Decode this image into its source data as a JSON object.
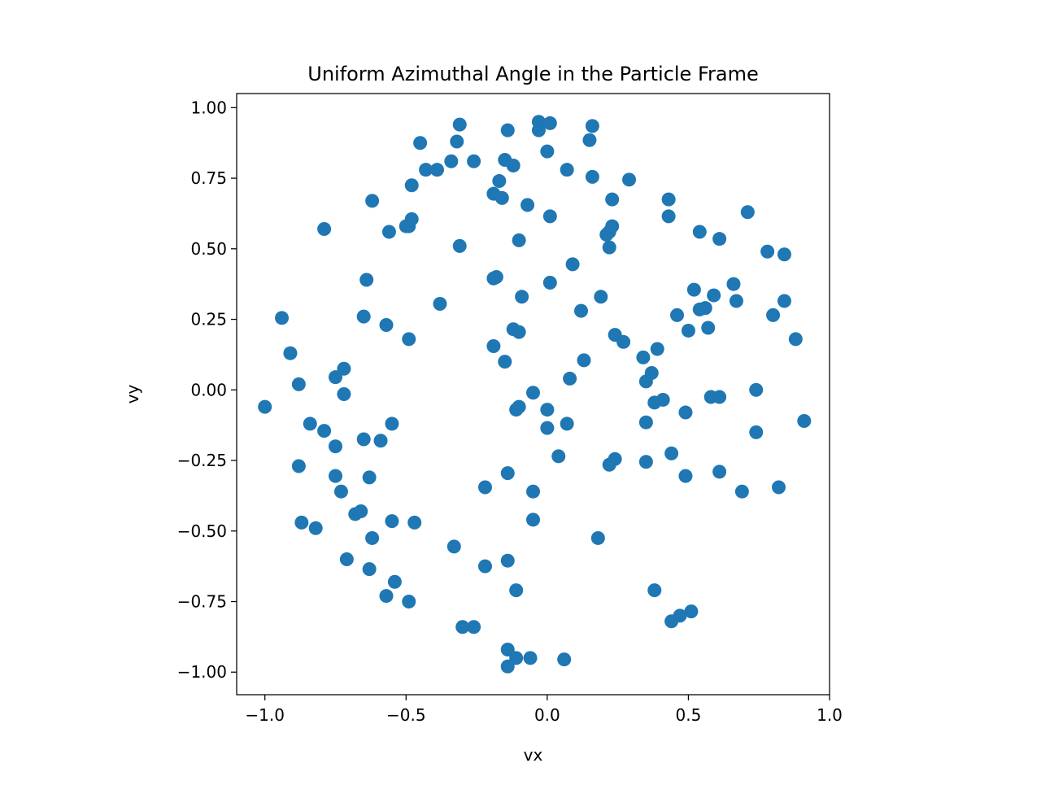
{
  "chart_data": {
    "type": "scatter",
    "title": "Uniform Azimuthal Angle in the Particle Frame",
    "xlabel": "vx",
    "ylabel": "vy",
    "xlim": [
      -1.1,
      1.0
    ],
    "ylim": [
      -1.08,
      1.05
    ],
    "xticks": [
      -1.0,
      -0.5,
      0.0,
      0.5,
      1.0
    ],
    "xtick_labels": [
      "−1.0",
      "−0.5",
      "0.0",
      "0.5",
      "1.0"
    ],
    "yticks": [
      -1.0,
      -0.75,
      -0.5,
      -0.25,
      0.0,
      0.25,
      0.5,
      0.75,
      1.0
    ],
    "ytick_labels": [
      "−1.00",
      "−0.75",
      "−0.50",
      "−0.25",
      "0.00",
      "0.25",
      "0.50",
      "0.75",
      "1.00"
    ],
    "grid": false,
    "color": "#1f77b4",
    "points": [
      [
        -0.31,
        0.94
      ],
      [
        -0.03,
        0.95
      ],
      [
        0.01,
        0.945
      ],
      [
        -0.03,
        0.92
      ],
      [
        0.16,
        0.935
      ],
      [
        -0.14,
        0.92
      ],
      [
        0.15,
        0.885
      ],
      [
        -0.45,
        0.875
      ],
      [
        -0.32,
        0.88
      ],
      [
        0.0,
        0.845
      ],
      [
        -0.34,
        0.81
      ],
      [
        -0.26,
        0.81
      ],
      [
        -0.15,
        0.815
      ],
      [
        -0.12,
        0.795
      ],
      [
        -0.43,
        0.78
      ],
      [
        -0.39,
        0.78
      ],
      [
        0.07,
        0.78
      ],
      [
        0.16,
        0.755
      ],
      [
        0.29,
        0.745
      ],
      [
        -0.17,
        0.74
      ],
      [
        -0.48,
        0.725
      ],
      [
        -0.19,
        0.695
      ],
      [
        -0.16,
        0.68
      ],
      [
        0.23,
        0.675
      ],
      [
        0.43,
        0.675
      ],
      [
        -0.62,
        0.67
      ],
      [
        -0.07,
        0.655
      ],
      [
        0.01,
        0.615
      ],
      [
        0.43,
        0.615
      ],
      [
        0.71,
        0.63
      ],
      [
        -0.48,
        0.605
      ],
      [
        -0.49,
        0.58
      ],
      [
        -0.5,
        0.58
      ],
      [
        0.23,
        0.58
      ],
      [
        -0.79,
        0.57
      ],
      [
        -0.56,
        0.56
      ],
      [
        0.21,
        0.55
      ],
      [
        0.22,
        0.56
      ],
      [
        0.54,
        0.56
      ],
      [
        0.61,
        0.535
      ],
      [
        -0.1,
        0.53
      ],
      [
        -0.31,
        0.51
      ],
      [
        0.22,
        0.505
      ],
      [
        0.78,
        0.49
      ],
      [
        0.84,
        0.48
      ],
      [
        0.09,
        0.445
      ],
      [
        -0.18,
        0.4
      ],
      [
        -0.19,
        0.395
      ],
      [
        -0.64,
        0.39
      ],
      [
        0.01,
        0.38
      ],
      [
        0.66,
        0.375
      ],
      [
        0.52,
        0.355
      ],
      [
        -0.09,
        0.33
      ],
      [
        0.19,
        0.33
      ],
      [
        0.59,
        0.335
      ],
      [
        0.67,
        0.315
      ],
      [
        0.84,
        0.315
      ],
      [
        -0.38,
        0.305
      ],
      [
        0.56,
        0.29
      ],
      [
        0.54,
        0.285
      ],
      [
        0.12,
        0.28
      ],
      [
        -0.65,
        0.26
      ],
      [
        0.46,
        0.265
      ],
      [
        0.8,
        0.265
      ],
      [
        -0.94,
        0.255
      ],
      [
        -0.57,
        0.23
      ],
      [
        -0.12,
        0.215
      ],
      [
        0.57,
        0.22
      ],
      [
        -0.1,
        0.205
      ],
      [
        0.5,
        0.21
      ],
      [
        0.24,
        0.195
      ],
      [
        0.88,
        0.18
      ],
      [
        -0.49,
        0.18
      ],
      [
        0.27,
        0.17
      ],
      [
        -0.19,
        0.155
      ],
      [
        0.39,
        0.145
      ],
      [
        -0.91,
        0.13
      ],
      [
        0.34,
        0.115
      ],
      [
        0.13,
        0.105
      ],
      [
        -0.15,
        0.1
      ],
      [
        -0.72,
        0.075
      ],
      [
        0.37,
        0.06
      ],
      [
        -0.75,
        0.045
      ],
      [
        0.08,
        0.04
      ],
      [
        0.35,
        0.03
      ],
      [
        -0.88,
        0.02
      ],
      [
        0.74,
        0.0
      ],
      [
        -0.05,
        -0.01
      ],
      [
        -0.72,
        -0.015
      ],
      [
        0.58,
        -0.025
      ],
      [
        0.61,
        -0.025
      ],
      [
        0.41,
        -0.035
      ],
      [
        0.38,
        -0.045
      ],
      [
        -0.1,
        -0.06
      ],
      [
        -1.0,
        -0.06
      ],
      [
        -0.11,
        -0.07
      ],
      [
        0.0,
        -0.07
      ],
      [
        0.49,
        -0.08
      ],
      [
        0.91,
        -0.11
      ],
      [
        0.35,
        -0.115
      ],
      [
        -0.84,
        -0.12
      ],
      [
        -0.55,
        -0.12
      ],
      [
        0.07,
        -0.12
      ],
      [
        -0.79,
        -0.145
      ],
      [
        -0.0,
        -0.135
      ],
      [
        0.74,
        -0.15
      ],
      [
        -0.65,
        -0.175
      ],
      [
        -0.59,
        -0.18
      ],
      [
        -0.75,
        -0.2
      ],
      [
        0.44,
        -0.225
      ],
      [
        0.04,
        -0.235
      ],
      [
        0.24,
        -0.245
      ],
      [
        0.35,
        -0.255
      ],
      [
        0.22,
        -0.265
      ],
      [
        -0.88,
        -0.27
      ],
      [
        0.61,
        -0.29
      ],
      [
        -0.14,
        -0.295
      ],
      [
        -0.75,
        -0.305
      ],
      [
        0.49,
        -0.305
      ],
      [
        -0.63,
        -0.31
      ],
      [
        -0.22,
        -0.345
      ],
      [
        0.82,
        -0.345
      ],
      [
        -0.05,
        -0.36
      ],
      [
        -0.73,
        -0.36
      ],
      [
        0.69,
        -0.36
      ],
      [
        -0.66,
        -0.43
      ],
      [
        -0.68,
        -0.44
      ],
      [
        -0.05,
        -0.46
      ],
      [
        -0.87,
        -0.47
      ],
      [
        -0.55,
        -0.465
      ],
      [
        -0.47,
        -0.47
      ],
      [
        -0.82,
        -0.49
      ],
      [
        -0.62,
        -0.525
      ],
      [
        0.18,
        -0.525
      ],
      [
        -0.33,
        -0.555
      ],
      [
        -0.14,
        -0.605
      ],
      [
        -0.71,
        -0.6
      ],
      [
        -0.22,
        -0.625
      ],
      [
        -0.63,
        -0.635
      ],
      [
        -0.54,
        -0.68
      ],
      [
        -0.11,
        -0.71
      ],
      [
        0.38,
        -0.71
      ],
      [
        -0.57,
        -0.73
      ],
      [
        -0.49,
        -0.75
      ],
      [
        0.51,
        -0.785
      ],
      [
        0.47,
        -0.8
      ],
      [
        0.44,
        -0.82
      ],
      [
        -0.3,
        -0.84
      ],
      [
        -0.26,
        -0.84
      ],
      [
        -0.14,
        -0.92
      ],
      [
        -0.11,
        -0.95
      ],
      [
        -0.06,
        -0.95
      ],
      [
        0.06,
        -0.955
      ],
      [
        -0.14,
        -0.98
      ]
    ]
  }
}
